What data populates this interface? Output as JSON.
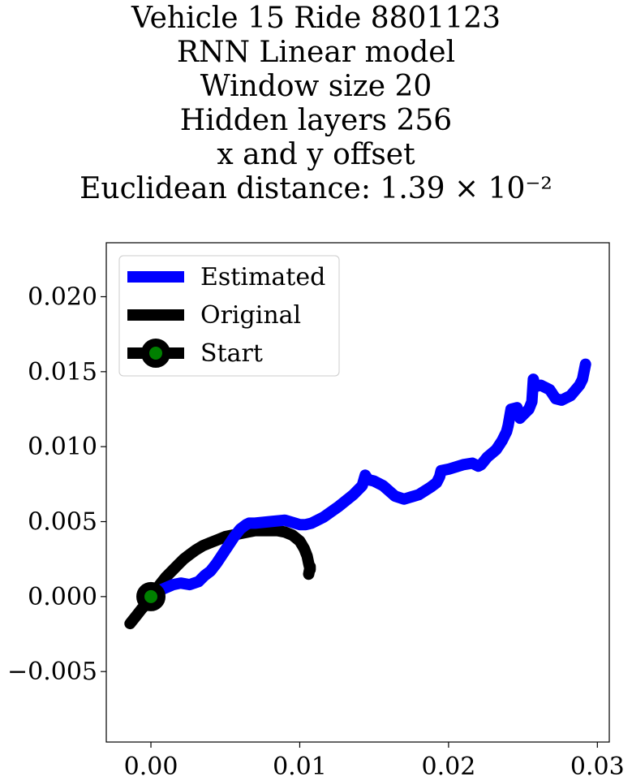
{
  "chart_data": {
    "type": "line",
    "title_lines": [
      "Vehicle 15 Ride 8801123",
      "RNN Linear model",
      "Window size 20",
      "Hidden layers 256",
      "x and y offset",
      "Euclidean distance: 1.39 × 10⁻²"
    ],
    "xlabel": "",
    "ylabel": "",
    "xlim": [
      -0.003,
      0.0308
    ],
    "ylim": [
      -0.0097,
      0.0236
    ],
    "xticks": [
      0.0,
      0.01,
      0.02,
      0.03
    ],
    "xtick_labels": [
      "0.00",
      "0.01",
      "0.02",
      "0.03"
    ],
    "yticks": [
      -0.005,
      0.0,
      0.005,
      0.01,
      0.015,
      0.02
    ],
    "ytick_labels": [
      "−0.005",
      "0.000",
      "0.005",
      "0.010",
      "0.015",
      "0.020"
    ],
    "grid": false,
    "legend": {
      "placement": "upper-left",
      "entries": [
        "Estimated",
        "Original",
        "Start"
      ]
    },
    "series": [
      {
        "name": "Estimated",
        "color": "#0000ff",
        "x": [
          0.0,
          0.0008,
          0.0015,
          0.002,
          0.0026,
          0.0032,
          0.0036,
          0.004,
          0.0044,
          0.0048,
          0.0052,
          0.0056,
          0.006,
          0.0064,
          0.0066,
          0.007,
          0.008,
          0.009,
          0.01,
          0.0104,
          0.0108,
          0.0116,
          0.0126,
          0.0136,
          0.0142,
          0.0144,
          0.0146,
          0.015,
          0.0156,
          0.0164,
          0.017,
          0.018,
          0.0188,
          0.0192,
          0.0194,
          0.0195,
          0.02,
          0.021,
          0.0216,
          0.022,
          0.0222,
          0.0226,
          0.0232,
          0.0236,
          0.0239,
          0.024,
          0.0242,
          0.0246,
          0.0248,
          0.0251,
          0.0254,
          0.0256,
          0.0257,
          0.0258,
          0.0262,
          0.0268,
          0.0272,
          0.0276,
          0.0282,
          0.0288,
          0.029,
          0.0292
        ],
        "y": [
          0.0002,
          0.0005,
          0.0008,
          0.0009,
          0.0008,
          0.001,
          0.0014,
          0.0017,
          0.0022,
          0.0028,
          0.0034,
          0.004,
          0.0045,
          0.0048,
          0.0049,
          0.0049,
          0.005,
          0.0051,
          0.0048,
          0.0048,
          0.0049,
          0.0053,
          0.006,
          0.0068,
          0.0074,
          0.0081,
          0.0078,
          0.0077,
          0.0074,
          0.0067,
          0.0065,
          0.0068,
          0.0073,
          0.0076,
          0.008,
          0.0084,
          0.0085,
          0.0088,
          0.0089,
          0.0087,
          0.0088,
          0.0093,
          0.0098,
          0.0104,
          0.011,
          0.0114,
          0.0125,
          0.0126,
          0.0119,
          0.0122,
          0.0125,
          0.013,
          0.0145,
          0.014,
          0.0141,
          0.0138,
          0.0132,
          0.0131,
          0.0134,
          0.0141,
          0.0145,
          0.0155
        ]
      },
      {
        "name": "Original",
        "color": "#000000",
        "x": [
          -0.0014,
          -0.001,
          -0.0006,
          -0.0002,
          0.0002,
          0.0006,
          0.001,
          0.0014,
          0.0018,
          0.0022,
          0.0026,
          0.003,
          0.0035,
          0.004,
          0.0045,
          0.005,
          0.0055,
          0.006,
          0.0065,
          0.007,
          0.0075,
          0.008,
          0.0085,
          0.009,
          0.0095,
          0.01,
          0.0103,
          0.0105,
          0.0106,
          0.0107,
          0.0107,
          0.0106
        ],
        "y": [
          -0.0018,
          -0.0013,
          -0.0008,
          -0.0004,
          0.0002,
          0.0008,
          0.0013,
          0.0017,
          0.0021,
          0.0025,
          0.0028,
          0.0031,
          0.0034,
          0.0036,
          0.0038,
          0.004,
          0.0041,
          0.0042,
          0.0043,
          0.0044,
          0.0044,
          0.0044,
          0.0044,
          0.0043,
          0.0041,
          0.0037,
          0.0032,
          0.0027,
          0.0022,
          0.0018,
          0.002,
          0.0015
        ]
      }
    ],
    "start": {
      "name": "Start",
      "x": 0.0,
      "y": 0.0,
      "edge_color": "#000000",
      "face_color": "#008000"
    }
  }
}
